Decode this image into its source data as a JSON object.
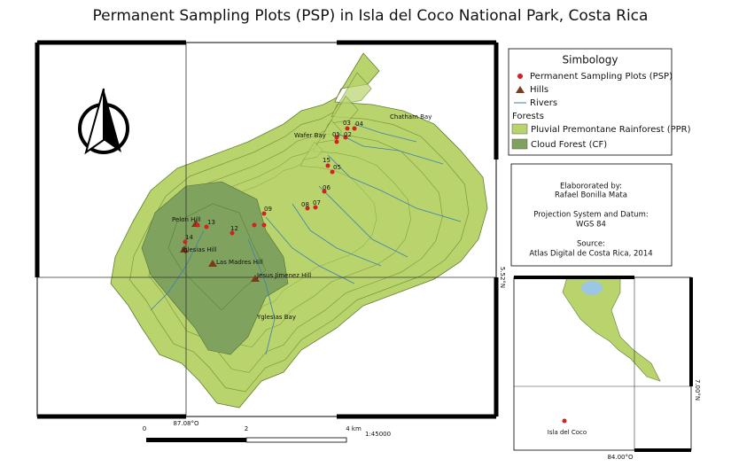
{
  "title": "Permanent Sampling Plots (PSP) in Isla del Coco National Park, Costa Rica",
  "legend": {
    "title": "Simbology",
    "items": [
      "Permanent Sampling Plots (PSP)",
      "Hills",
      "Rivers"
    ],
    "group": "Forests",
    "forests": [
      "Pluvial Premontane Rainforest (PPR)",
      "Cloud Forest (CF)"
    ]
  },
  "credits": [
    "Elabororated by:",
    "Rafael Bonilla Mata",
    "Projection System and Datum:",
    "WGS 84",
    "Source:",
    "Atlas Digital de Costa Rica, 2014"
  ],
  "map": {
    "places": [
      "Chatham Bay",
      "Wafer Bay",
      "Pelon Hill",
      "Iglesias Hill",
      "Las Madres Hill",
      "Jesus Jimenez Hill",
      "Yglesias Bay"
    ],
    "plots": [
      "03",
      "04",
      "01",
      "02",
      "15",
      "05",
      "06",
      "07",
      "08",
      "09",
      "13",
      "12",
      "14"
    ]
  },
  "scale": {
    "labels": [
      "0",
      "2",
      "4 km"
    ],
    "ratio": "1:45000"
  },
  "coordinates": [
    "87.08°O",
    "5.52°N",
    "7.00°N",
    "84.00°O"
  ],
  "inset": {
    "label": "Isla del Coco"
  }
}
